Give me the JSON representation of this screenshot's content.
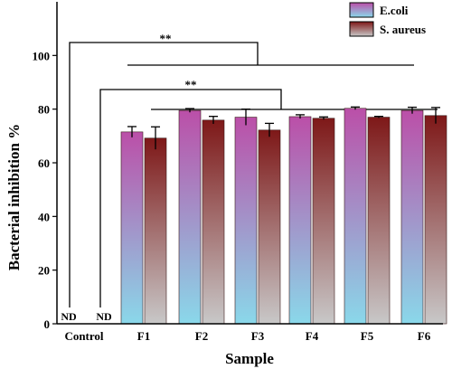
{
  "chart_data": {
    "type": "bar",
    "xlabel": "Sample",
    "ylabel": "Bacterial inhibition %",
    "ylim": [
      0,
      120
    ],
    "yticks": [
      0,
      20,
      40,
      60,
      80,
      100
    ],
    "grid": false,
    "legend_position": "top-right",
    "categories": [
      "Control",
      "F1",
      "F2",
      "F3",
      "F4",
      "F5",
      "F6"
    ],
    "series": [
      {
        "name": "E.coli",
        "values": [
          0,
          71.5,
          79.5,
          77,
          77.2,
          80.3,
          79.5
        ],
        "errors": [
          0,
          2,
          0.7,
          3,
          0.7,
          0.5,
          1.2
        ],
        "color_top": "#bb4fa8",
        "color_bottom": "#8ad8ea"
      },
      {
        "name": "S. aureus",
        "values": [
          0,
          69.2,
          75.9,
          72.2,
          76.6,
          77,
          77.6
        ],
        "errors": [
          0,
          4.2,
          1.4,
          2.5,
          0.5,
          0.3,
          3
        ],
        "color_top": "#7e1818",
        "color_bottom": "#c8c8c8"
      }
    ],
    "annotations": {
      "not_detected": "ND",
      "significance": [
        "**",
        "**"
      ]
    }
  }
}
